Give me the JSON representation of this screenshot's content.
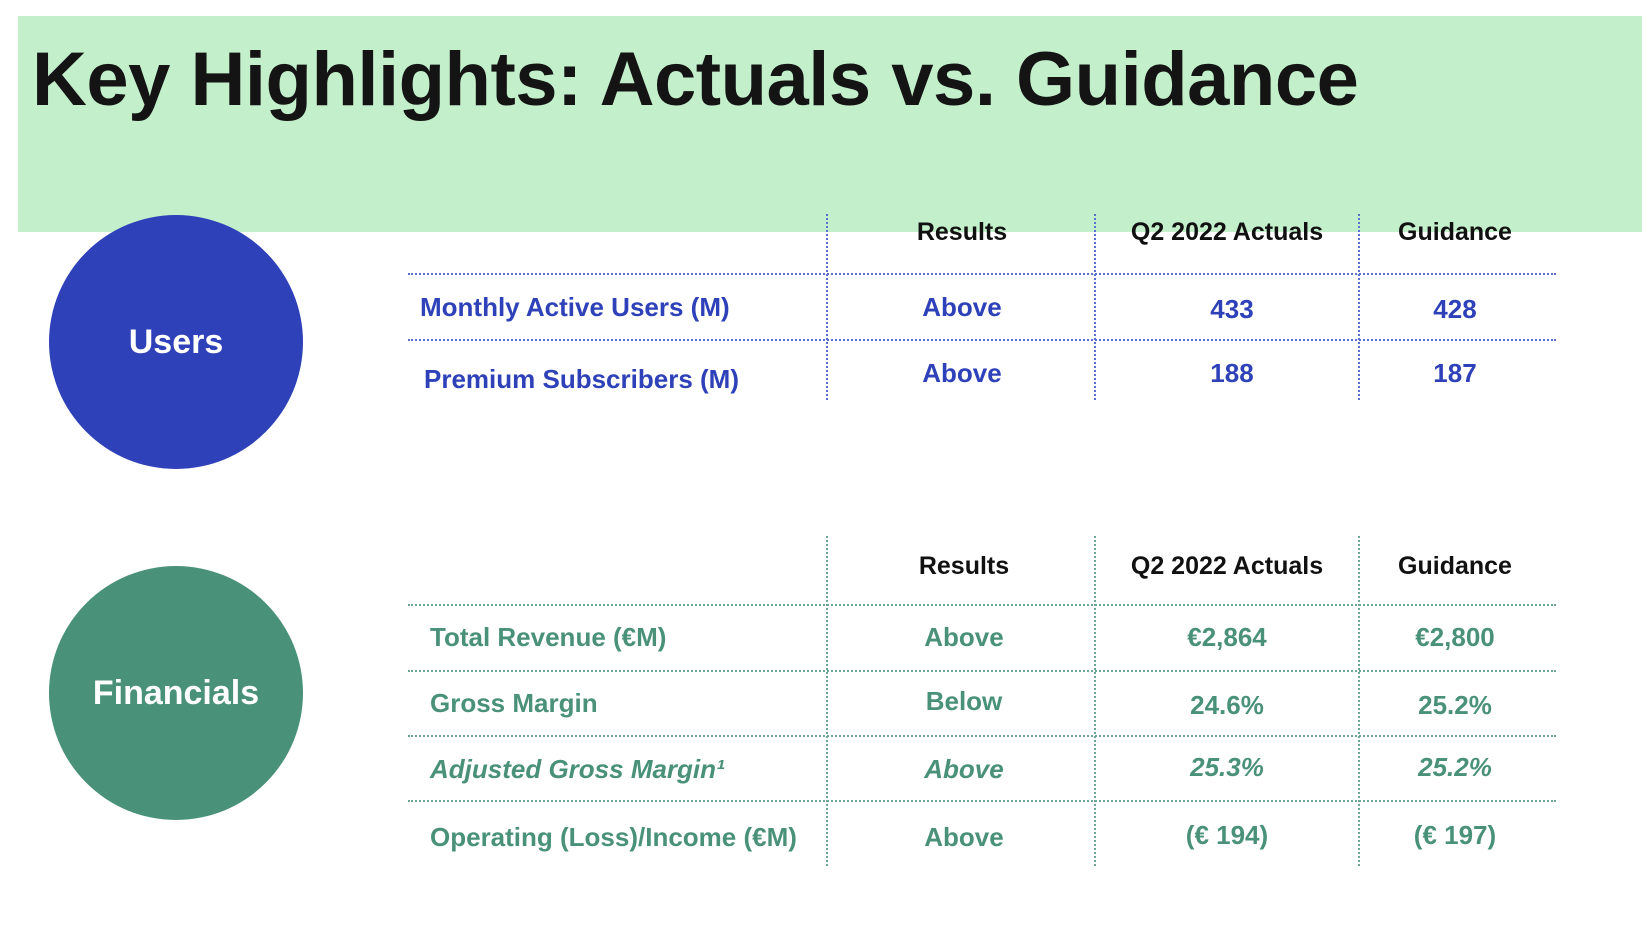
{
  "title": "Key Highlights: Actuals vs. Guidance",
  "colors": {
    "banner": "#c3efcb",
    "users": "#2e41b8",
    "financials": "#4a917a"
  },
  "users": {
    "circle_label": "Users",
    "headers": [
      "Results",
      "Q2 2022 Actuals",
      "Guidance"
    ],
    "rows": [
      {
        "metric": "Monthly Active Users (M)",
        "result": "Above",
        "actual": "433",
        "guidance": "428"
      },
      {
        "metric": "Premium Subscribers (M)",
        "result": "Above",
        "actual": "188",
        "guidance": "187"
      }
    ]
  },
  "financials": {
    "circle_label": "Financials",
    "headers": [
      "Results",
      "Q2 2022 Actuals",
      "Guidance"
    ],
    "rows": [
      {
        "metric": "Total Revenue (€M)",
        "result": "Above",
        "actual": "€2,864",
        "guidance": "€2,800"
      },
      {
        "metric": "Gross Margin",
        "result": "Below",
        "actual": "24.6%",
        "guidance": "25.2%"
      },
      {
        "metric": "Adjusted Gross Margin¹",
        "result": "Above",
        "actual": "25.3%",
        "guidance": "25.2%"
      },
      {
        "metric": "Operating (Loss)/Income (€M)",
        "result": "Above",
        "actual": "(€ 194)",
        "guidance": "(€ 197)"
      }
    ]
  }
}
